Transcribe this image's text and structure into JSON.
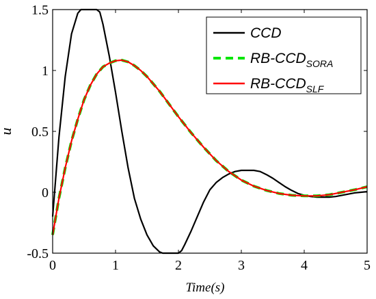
{
  "chart_data": {
    "type": "line",
    "xlabel": "Time(s)",
    "ylabel": "u",
    "xlim": [
      0,
      5
    ],
    "ylim": [
      -0.5,
      1.5
    ],
    "xticks": [
      "0",
      "1",
      "2",
      "3",
      "4",
      "5"
    ],
    "yticks": [
      "-0.5",
      "0",
      "0.5",
      "1",
      "1.5"
    ],
    "grid": false,
    "legend_position": "top-right",
    "series": [
      {
        "name": "CCD",
        "name_main": "CCD",
        "name_sub": "",
        "color": "#000000",
        "style": "solid",
        "x": [
          0,
          0.1,
          0.2,
          0.3,
          0.4,
          0.45,
          0.5,
          0.6,
          0.7,
          0.75,
          0.8,
          0.9,
          1.0,
          1.1,
          1.2,
          1.3,
          1.4,
          1.5,
          1.6,
          1.7,
          1.75,
          1.8,
          1.9,
          2.0,
          2.05,
          2.1,
          2.2,
          2.3,
          2.4,
          2.5,
          2.6,
          2.7,
          2.8,
          2.9,
          3.0,
          3.1,
          3.2,
          3.3,
          3.4,
          3.5,
          3.6,
          3.7,
          3.8,
          3.9,
          4.0,
          4.1,
          4.2,
          4.3,
          4.4,
          4.5,
          4.6,
          4.7,
          4.8,
          4.9,
          5.0
        ],
        "y": [
          -0.2,
          0.45,
          0.95,
          1.3,
          1.47,
          1.5,
          1.5,
          1.5,
          1.5,
          1.48,
          1.38,
          1.12,
          0.82,
          0.5,
          0.2,
          -0.05,
          -0.22,
          -0.35,
          -0.44,
          -0.49,
          -0.5,
          -0.5,
          -0.5,
          -0.5,
          -0.48,
          -0.43,
          -0.32,
          -0.2,
          -0.08,
          0.02,
          0.08,
          0.12,
          0.15,
          0.17,
          0.18,
          0.18,
          0.18,
          0.17,
          0.145,
          0.115,
          0.08,
          0.045,
          0.015,
          -0.01,
          -0.025,
          -0.035,
          -0.04,
          -0.04,
          -0.04,
          -0.035,
          -0.025,
          -0.015,
          -0.005,
          0.0,
          0.005
        ]
      },
      {
        "name": "RB-CCD SORA",
        "name_main": "RB-CCD",
        "name_sub": "SORA",
        "color": "#00e600",
        "style": "dashed",
        "x": [
          0,
          0.1,
          0.2,
          0.3,
          0.4,
          0.5,
          0.6,
          0.7,
          0.8,
          0.9,
          1.0,
          1.1,
          1.2,
          1.3,
          1.4,
          1.5,
          1.6,
          1.7,
          1.8,
          1.9,
          2.0,
          2.2,
          2.4,
          2.6,
          2.8,
          3.0,
          3.2,
          3.4,
          3.6,
          3.8,
          4.0,
          4.2,
          4.4,
          4.6,
          4.8,
          5.0
        ],
        "y": [
          -0.35,
          -0.05,
          0.2,
          0.42,
          0.6,
          0.76,
          0.88,
          0.97,
          1.03,
          1.06,
          1.08,
          1.085,
          1.07,
          1.04,
          1.0,
          0.95,
          0.89,
          0.83,
          0.76,
          0.69,
          0.62,
          0.49,
          0.37,
          0.26,
          0.17,
          0.1,
          0.05,
          0.015,
          -0.01,
          -0.025,
          -0.03,
          -0.03,
          -0.02,
          0.0,
          0.02,
          0.045
        ]
      },
      {
        "name": "RB-CCD SLF",
        "name_main": "RB-CCD",
        "name_sub": "SLF",
        "color": "#ff0000",
        "style": "solid",
        "x": [
          0,
          0.1,
          0.2,
          0.3,
          0.4,
          0.5,
          0.6,
          0.7,
          0.8,
          0.9,
          1.0,
          1.1,
          1.2,
          1.3,
          1.4,
          1.5,
          1.6,
          1.7,
          1.8,
          1.9,
          2.0,
          2.2,
          2.4,
          2.6,
          2.8,
          3.0,
          3.2,
          3.4,
          3.6,
          3.8,
          4.0,
          4.2,
          4.4,
          4.6,
          4.8,
          5.0
        ],
        "y": [
          -0.35,
          -0.05,
          0.2,
          0.42,
          0.6,
          0.76,
          0.88,
          0.97,
          1.03,
          1.06,
          1.08,
          1.085,
          1.07,
          1.04,
          1.0,
          0.95,
          0.89,
          0.83,
          0.76,
          0.69,
          0.62,
          0.49,
          0.37,
          0.26,
          0.17,
          0.1,
          0.05,
          0.015,
          -0.01,
          -0.025,
          -0.03,
          -0.03,
          -0.02,
          0.0,
          0.02,
          0.045
        ]
      }
    ]
  }
}
